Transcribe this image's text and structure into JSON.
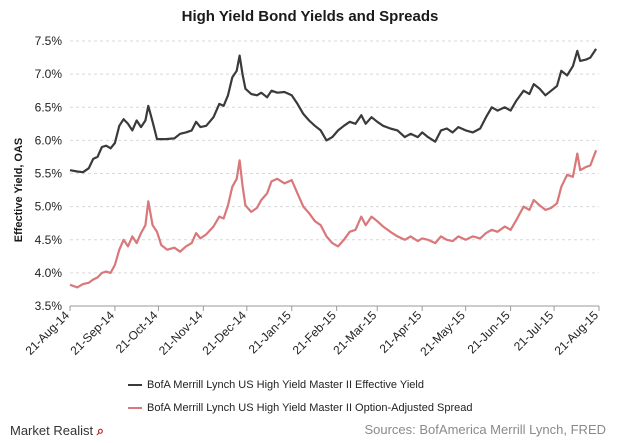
{
  "chart_data": {
    "type": "line",
    "title": "High Yield Bond Yields and Spreads",
    "ylabel": "Effective Yield, OAS",
    "ylim": [
      3.5,
      7.5
    ],
    "yticks": [
      "3.5%",
      "4.0%",
      "4.5%",
      "5.0%",
      "5.5%",
      "6.0%",
      "6.5%",
      "7.0%",
      "7.5%"
    ],
    "x_start": "2014-08-21",
    "x_end": "2015-08-21",
    "xticks": [
      {
        "label": "21-Aug-14",
        "date": "2014-08-21"
      },
      {
        "label": "21-Sep-14",
        "date": "2014-09-21"
      },
      {
        "label": "21-Oct-14",
        "date": "2014-10-21"
      },
      {
        "label": "21-Nov-14",
        "date": "2014-11-21"
      },
      {
        "label": "21-Dec-14",
        "date": "2014-12-21"
      },
      {
        "label": "21-Jan-15",
        "date": "2015-01-21"
      },
      {
        "label": "21-Feb-15",
        "date": "2015-02-21"
      },
      {
        "label": "21-Mar-15",
        "date": "2015-03-21"
      },
      {
        "label": "21-Apr-15",
        "date": "2015-04-21"
      },
      {
        "label": "21-May-15",
        "date": "2015-05-21"
      },
      {
        "label": "21-Jun-15",
        "date": "2015-06-21"
      },
      {
        "label": "21-Jul-15",
        "date": "2015-07-21"
      },
      {
        "label": "21-Aug-15",
        "date": "2015-08-21"
      }
    ],
    "grid": true,
    "legend_position": "bottom",
    "series": [
      {
        "name": "BofA Merrill Lynch US High Yield Master II Effective Yield",
        "color": "#3a3a3a",
        "points": [
          [
            "2014-08-21",
            5.55
          ],
          [
            "2014-08-26",
            5.53
          ],
          [
            "2014-08-30",
            5.52
          ],
          [
            "2014-09-03",
            5.58
          ],
          [
            "2014-09-06",
            5.72
          ],
          [
            "2014-09-09",
            5.75
          ],
          [
            "2014-09-12",
            5.9
          ],
          [
            "2014-09-15",
            5.92
          ],
          [
            "2014-09-18",
            5.88
          ],
          [
            "2014-09-21",
            5.96
          ],
          [
            "2014-09-24",
            6.22
          ],
          [
            "2014-09-27",
            6.32
          ],
          [
            "2014-09-30",
            6.25
          ],
          [
            "2014-10-03",
            6.15
          ],
          [
            "2014-10-06",
            6.3
          ],
          [
            "2014-10-09",
            6.2
          ],
          [
            "2014-10-12",
            6.3
          ],
          [
            "2014-10-14",
            6.52
          ],
          [
            "2014-10-17",
            6.28
          ],
          [
            "2014-10-20",
            6.02
          ],
          [
            "2014-10-26",
            6.02
          ],
          [
            "2014-11-01",
            6.03
          ],
          [
            "2014-11-05",
            6.1
          ],
          [
            "2014-11-09",
            6.12
          ],
          [
            "2014-11-13",
            6.15
          ],
          [
            "2014-11-16",
            6.28
          ],
          [
            "2014-11-19",
            6.2
          ],
          [
            "2014-11-23",
            6.22
          ],
          [
            "2014-11-28",
            6.35
          ],
          [
            "2014-12-02",
            6.55
          ],
          [
            "2014-12-05",
            6.52
          ],
          [
            "2014-12-08",
            6.68
          ],
          [
            "2014-12-11",
            6.95
          ],
          [
            "2014-12-14",
            7.05
          ],
          [
            "2014-12-16",
            7.28
          ],
          [
            "2014-12-18",
            7.0
          ],
          [
            "2014-12-20",
            6.78
          ],
          [
            "2014-12-24",
            6.7
          ],
          [
            "2014-12-28",
            6.68
          ],
          [
            "2014-12-31",
            6.72
          ],
          [
            "2015-01-04",
            6.65
          ],
          [
            "2015-01-07",
            6.75
          ],
          [
            "2015-01-11",
            6.72
          ],
          [
            "2015-01-16",
            6.73
          ],
          [
            "2015-01-21",
            6.68
          ],
          [
            "2015-01-25",
            6.55
          ],
          [
            "2015-01-29",
            6.4
          ],
          [
            "2015-02-02",
            6.3
          ],
          [
            "2015-02-06",
            6.22
          ],
          [
            "2015-02-10",
            6.15
          ],
          [
            "2015-02-14",
            6.0
          ],
          [
            "2015-02-18",
            6.05
          ],
          [
            "2015-02-22",
            6.15
          ],
          [
            "2015-02-26",
            6.22
          ],
          [
            "2015-03-02",
            6.28
          ],
          [
            "2015-03-06",
            6.25
          ],
          [
            "2015-03-10",
            6.38
          ],
          [
            "2015-03-13",
            6.25
          ],
          [
            "2015-03-17",
            6.35
          ],
          [
            "2015-03-21",
            6.28
          ],
          [
            "2015-03-25",
            6.22
          ],
          [
            "2015-03-30",
            6.18
          ],
          [
            "2015-04-04",
            6.15
          ],
          [
            "2015-04-09",
            6.05
          ],
          [
            "2015-04-13",
            6.1
          ],
          [
            "2015-04-18",
            6.05
          ],
          [
            "2015-04-21",
            6.12
          ],
          [
            "2015-04-25",
            6.05
          ],
          [
            "2015-04-30",
            5.98
          ],
          [
            "2015-05-04",
            6.15
          ],
          [
            "2015-05-08",
            6.18
          ],
          [
            "2015-05-12",
            6.12
          ],
          [
            "2015-05-16",
            6.2
          ],
          [
            "2015-05-21",
            6.15
          ],
          [
            "2015-05-26",
            6.12
          ],
          [
            "2015-05-31",
            6.18
          ],
          [
            "2015-06-04",
            6.35
          ],
          [
            "2015-06-08",
            6.5
          ],
          [
            "2015-06-12",
            6.45
          ],
          [
            "2015-06-17",
            6.5
          ],
          [
            "2015-06-21",
            6.45
          ],
          [
            "2015-06-25",
            6.6
          ],
          [
            "2015-06-30",
            6.75
          ],
          [
            "2015-07-04",
            6.7
          ],
          [
            "2015-07-07",
            6.85
          ],
          [
            "2015-07-11",
            6.78
          ],
          [
            "2015-07-15",
            6.68
          ],
          [
            "2015-07-19",
            6.75
          ],
          [
            "2015-07-23",
            6.82
          ],
          [
            "2015-07-26",
            7.05
          ],
          [
            "2015-07-30",
            6.98
          ],
          [
            "2015-08-03",
            7.12
          ],
          [
            "2015-08-06",
            7.35
          ],
          [
            "2015-08-08",
            7.2
          ],
          [
            "2015-08-12",
            7.22
          ],
          [
            "2015-08-15",
            7.25
          ],
          [
            "2015-08-19",
            7.38
          ]
        ]
      },
      {
        "name": "BofA Merrill Lynch US High Yield Master II Option-Adjusted Spread",
        "color": "#d9777a",
        "points": [
          [
            "2014-08-21",
            3.82
          ],
          [
            "2014-08-26",
            3.78
          ],
          [
            "2014-08-30",
            3.83
          ],
          [
            "2014-09-03",
            3.85
          ],
          [
            "2014-09-06",
            3.9
          ],
          [
            "2014-09-09",
            3.93
          ],
          [
            "2014-09-12",
            4.0
          ],
          [
            "2014-09-15",
            4.02
          ],
          [
            "2014-09-18",
            4.0
          ],
          [
            "2014-09-21",
            4.12
          ],
          [
            "2014-09-24",
            4.35
          ],
          [
            "2014-09-27",
            4.5
          ],
          [
            "2014-09-30",
            4.4
          ],
          [
            "2014-10-03",
            4.55
          ],
          [
            "2014-10-06",
            4.45
          ],
          [
            "2014-10-09",
            4.6
          ],
          [
            "2014-10-12",
            4.72
          ],
          [
            "2014-10-14",
            5.08
          ],
          [
            "2014-10-17",
            4.72
          ],
          [
            "2014-10-20",
            4.62
          ],
          [
            "2014-10-23",
            4.42
          ],
          [
            "2014-10-27",
            4.35
          ],
          [
            "2014-11-01",
            4.38
          ],
          [
            "2014-11-05",
            4.32
          ],
          [
            "2014-11-09",
            4.4
          ],
          [
            "2014-11-13",
            4.45
          ],
          [
            "2014-11-16",
            4.6
          ],
          [
            "2014-11-19",
            4.52
          ],
          [
            "2014-11-23",
            4.58
          ],
          [
            "2014-11-28",
            4.7
          ],
          [
            "2014-12-02",
            4.85
          ],
          [
            "2014-12-05",
            4.82
          ],
          [
            "2014-12-08",
            5.02
          ],
          [
            "2014-12-11",
            5.3
          ],
          [
            "2014-12-14",
            5.42
          ],
          [
            "2014-12-16",
            5.7
          ],
          [
            "2014-12-18",
            5.32
          ],
          [
            "2014-12-20",
            5.02
          ],
          [
            "2014-12-24",
            4.92
          ],
          [
            "2014-12-28",
            4.98
          ],
          [
            "2014-12-31",
            5.1
          ],
          [
            "2015-01-04",
            5.2
          ],
          [
            "2015-01-07",
            5.38
          ],
          [
            "2015-01-11",
            5.42
          ],
          [
            "2015-01-16",
            5.35
          ],
          [
            "2015-01-21",
            5.4
          ],
          [
            "2015-01-25",
            5.2
          ],
          [
            "2015-01-29",
            5.0
          ],
          [
            "2015-02-02",
            4.9
          ],
          [
            "2015-02-06",
            4.78
          ],
          [
            "2015-02-10",
            4.72
          ],
          [
            "2015-02-14",
            4.55
          ],
          [
            "2015-02-18",
            4.45
          ],
          [
            "2015-02-22",
            4.4
          ],
          [
            "2015-02-26",
            4.5
          ],
          [
            "2015-03-02",
            4.62
          ],
          [
            "2015-03-06",
            4.65
          ],
          [
            "2015-03-10",
            4.85
          ],
          [
            "2015-03-13",
            4.72
          ],
          [
            "2015-03-17",
            4.85
          ],
          [
            "2015-03-21",
            4.78
          ],
          [
            "2015-03-25",
            4.7
          ],
          [
            "2015-03-30",
            4.62
          ],
          [
            "2015-04-04",
            4.55
          ],
          [
            "2015-04-09",
            4.5
          ],
          [
            "2015-04-13",
            4.55
          ],
          [
            "2015-04-18",
            4.48
          ],
          [
            "2015-04-21",
            4.52
          ],
          [
            "2015-04-25",
            4.5
          ],
          [
            "2015-04-30",
            4.45
          ],
          [
            "2015-05-04",
            4.55
          ],
          [
            "2015-05-08",
            4.5
          ],
          [
            "2015-05-12",
            4.48
          ],
          [
            "2015-05-16",
            4.55
          ],
          [
            "2015-05-21",
            4.5
          ],
          [
            "2015-05-26",
            4.55
          ],
          [
            "2015-05-31",
            4.52
          ],
          [
            "2015-06-04",
            4.6
          ],
          [
            "2015-06-08",
            4.65
          ],
          [
            "2015-06-12",
            4.62
          ],
          [
            "2015-06-17",
            4.7
          ],
          [
            "2015-06-21",
            4.65
          ],
          [
            "2015-06-25",
            4.8
          ],
          [
            "2015-06-30",
            5.0
          ],
          [
            "2015-07-04",
            4.95
          ],
          [
            "2015-07-07",
            5.1
          ],
          [
            "2015-07-11",
            5.02
          ],
          [
            "2015-07-15",
            4.95
          ],
          [
            "2015-07-19",
            4.98
          ],
          [
            "2015-07-23",
            5.05
          ],
          [
            "2015-07-26",
            5.3
          ],
          [
            "2015-07-30",
            5.48
          ],
          [
            "2015-08-03",
            5.45
          ],
          [
            "2015-08-06",
            5.8
          ],
          [
            "2015-08-08",
            5.55
          ],
          [
            "2015-08-12",
            5.6
          ],
          [
            "2015-08-15",
            5.62
          ],
          [
            "2015-08-19",
            5.85
          ]
        ]
      }
    ]
  },
  "footer": {
    "brand": "Market Realist",
    "brand_icon": "magnifier-q-icon",
    "source": "Sources: BofAmerica Merrill Lynch, FRED"
  }
}
